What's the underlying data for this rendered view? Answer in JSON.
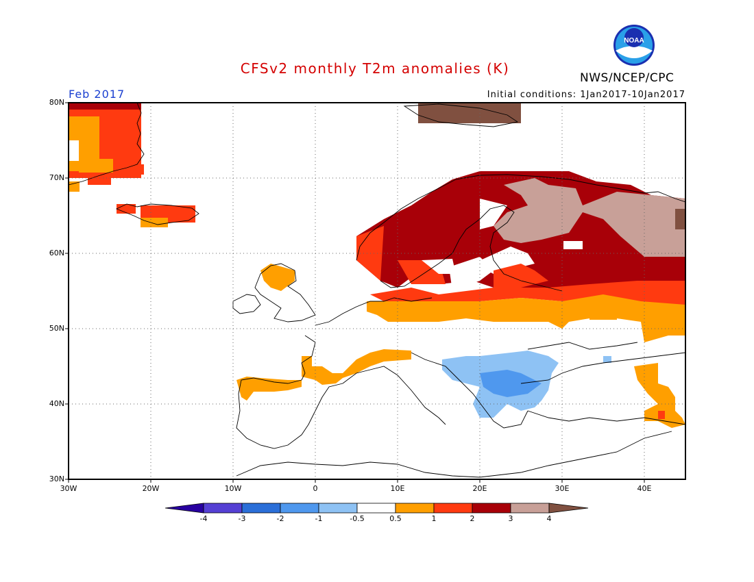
{
  "header": {
    "title": "CFSv2 monthly T2m anomalies (K)",
    "agency": "NWS/NCEP/CPC",
    "month": "Feb 2017",
    "initial_conditions": "Initial conditions: 1Jan2017-10Jan2017",
    "logo_text": "NOAA"
  },
  "axes": {
    "lat_labels": [
      "80N",
      "70N",
      "60N",
      "50N",
      "40N",
      "30N"
    ],
    "lon_labels": [
      "30W",
      "20W",
      "10W",
      "0",
      "10E",
      "20E",
      "30E",
      "40E"
    ]
  },
  "colorbar": {
    "tick_labels": [
      "-4",
      "-3",
      "-2",
      "-1",
      "-0.5",
      "0.5",
      "1",
      "2",
      "3",
      "4"
    ],
    "colors": [
      "#2800a0",
      "#5540d4",
      "#2b6fd8",
      "#4f98ee",
      "#8ec2f4",
      "#ffffff",
      "#ff9f00",
      "#ff3a10",
      "#a80008",
      "#c8a098",
      "#805040"
    ]
  },
  "colors": {
    "title": "#d40000",
    "month": "#1a3fd0"
  }
}
